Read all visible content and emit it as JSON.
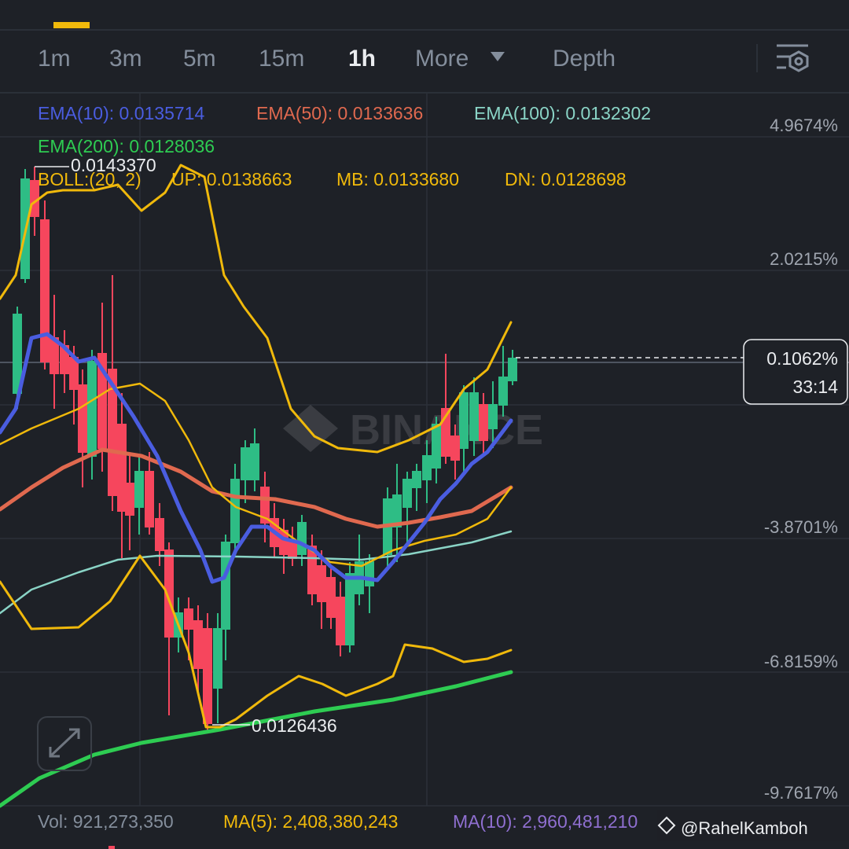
{
  "tabs": {
    "items": [
      "1m",
      "3m",
      "5m",
      "15m",
      "1h",
      "More",
      "Depth"
    ],
    "active": "1h"
  },
  "indicators": {
    "ema10": "EMA(10): 0.0135714",
    "ema50": "EMA(50): 0.0133636",
    "ema100": "EMA(100): 0.0132302",
    "ema200": "EMA(200): 0.0128036",
    "boll": "BOLL:(20, 2)",
    "up": "UP: 0.0138663",
    "mb": "MB: 0.0133680",
    "dn": "DN: 0.0128698"
  },
  "price_axis": {
    "labels": [
      "4.9674%",
      "2.0215%",
      "-3.8701%",
      "-6.8159%",
      "-9.7617%"
    ]
  },
  "markers": {
    "high": "0.0143370",
    "low": "0.0126436"
  },
  "current": {
    "change": "0.1062%",
    "countdown": "33:14"
  },
  "watermark": "BINANCE",
  "volume": {
    "vol": "Vol: 921,273,350",
    "ma5": "MA(5): 2,408,380,243",
    "ma10": "MA(10): 2,960,481,210"
  },
  "credit": "@RahelKamboh"
}
